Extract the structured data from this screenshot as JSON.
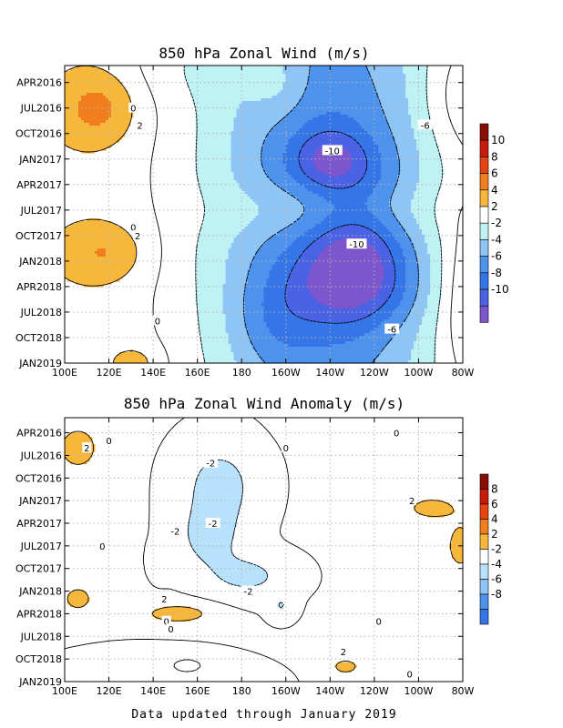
{
  "footer": "Data updated through January 2019",
  "chart_data": [
    {
      "type": "heatmap",
      "title": "850 hPa Zonal Wind (m/s)",
      "x_tick_labels": [
        "100E",
        "120E",
        "140E",
        "160E",
        "180",
        "160W",
        "140W",
        "120W",
        "100W",
        "80W"
      ],
      "x_range_deg_east": [
        100,
        280
      ],
      "y_tick_labels": [
        "APR2016",
        "JUL2016",
        "OCT2016",
        "JAN2017",
        "APR2017",
        "JUL2017",
        "OCT2017",
        "JAN2018",
        "APR2018",
        "JUL2018",
        "OCT2018",
        "JAN2019"
      ],
      "y_range": [
        "FEB2016",
        "JAN2019"
      ],
      "colorbar_levels": [
        -10,
        -8,
        -6,
        -4,
        -2,
        2,
        4,
        6,
        8,
        10
      ],
      "colorbar_labels": [
        "-10",
        "-8",
        "-6",
        "-4",
        "-2",
        "2",
        "4",
        "6",
        "8",
        "10"
      ],
      "colors": {
        "-12": "#7d55cc",
        "-10": "#4a63e4",
        "-8": "#3476e8",
        "-6": "#4d93ee",
        "-4": "#8ec5f4",
        "-2": "#bef2f4",
        "0": "#ffffff",
        "2": "#f6b73a",
        "4": "#f07d1e",
        "6": "#e6450f",
        "8": "#c81a0a",
        "10": "#8a0d04"
      },
      "contour_labels": [
        {
          "text": "0",
          "lon": 131,
          "t": "JUL2016"
        },
        {
          "text": "2",
          "lon": 134,
          "t": "SEP2016"
        },
        {
          "text": "-10",
          "lon": 221,
          "t": "DEC2016"
        },
        {
          "text": "-6",
          "lon": 263,
          "t": "SEP2016"
        },
        {
          "text": "0",
          "lon": 131,
          "t": "SEP2017"
        },
        {
          "text": "2",
          "lon": 133,
          "t": "OCT2017"
        },
        {
          "text": "-10",
          "lon": 232,
          "t": "NOV2017"
        },
        {
          "text": "0",
          "lon": 142,
          "t": "AUG2018"
        },
        {
          "text": "-6",
          "lon": 248,
          "t": "SEP2018"
        }
      ]
    },
    {
      "type": "heatmap",
      "title": "850 hPa Zonal Wind Anomaly (m/s)",
      "x_tick_labels": [
        "100E",
        "120E",
        "140E",
        "160E",
        "180",
        "160W",
        "140W",
        "120W",
        "100W",
        "80W"
      ],
      "x_range_deg_east": [
        100,
        280
      ],
      "y_tick_labels": [
        "APR2016",
        "JUL2016",
        "OCT2016",
        "JAN2017",
        "APR2017",
        "JUL2017",
        "OCT2017",
        "JAN2018",
        "APR2018",
        "JUL2018",
        "OCT2018",
        "JAN2019"
      ],
      "y_range": [
        "FEB2016",
        "JAN2019"
      ],
      "colorbar_levels": [
        -8,
        -6,
        -4,
        -2,
        2,
        4,
        6,
        8
      ],
      "colorbar_labels": [
        "-8",
        "-6",
        "-4",
        "-2",
        "2",
        "4",
        "6",
        "8"
      ],
      "colors": {
        "-10": "#7d55cc",
        "-8": "#3476e8",
        "-6": "#4d93ee",
        "-4": "#8ec5f4",
        "-2": "#b8e2fb",
        "0": "#ffffff",
        "2": "#f6b73a",
        "4": "#f07d1e",
        "6": "#e6450f",
        "8": "#c81a0a",
        "10": "#8a0d04"
      },
      "contour_labels": [
        {
          "text": "0",
          "lon": 250,
          "t": "APR2016"
        },
        {
          "text": "0",
          "lon": 120,
          "t": "MAY2016"
        },
        {
          "text": "2",
          "lon": 110,
          "t": "JUN2016"
        },
        {
          "text": "0",
          "lon": 200,
          "t": "JUN2016"
        },
        {
          "text": "-2",
          "lon": 166,
          "t": "AUG2016"
        },
        {
          "text": "2",
          "lon": 257,
          "t": "JAN2017"
        },
        {
          "text": "-2",
          "lon": 150,
          "t": "MAY2017"
        },
        {
          "text": "-2",
          "lon": 167,
          "t": "APR2017"
        },
        {
          "text": "0",
          "lon": 117,
          "t": "JUL2017"
        },
        {
          "text": "-2",
          "lon": 183,
          "t": "JAN2018"
        },
        {
          "text": "2",
          "lon": 145,
          "t": "FEB2018"
        },
        {
          "text": "0",
          "lon": 242,
          "t": "MAY2018"
        },
        {
          "text": "0",
          "lon": 146,
          "t": "MAY2018"
        },
        {
          "text": "0",
          "lon": 148,
          "t": "JUN2018"
        },
        {
          "text": "2",
          "lon": 226,
          "t": "SEP2018"
        },
        {
          "text": "0",
          "lon": 256,
          "t": "DEC2018"
        }
      ]
    }
  ]
}
